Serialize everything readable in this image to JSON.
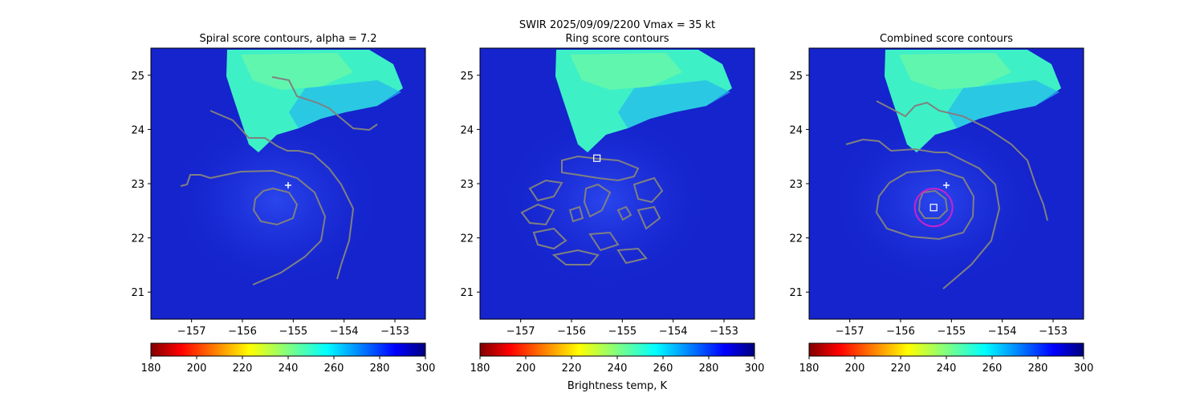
{
  "suptitle_line": "SWIR  2025/09/09/2200    Vmax = 35 kt",
  "colorbar": {
    "label": "Brightness temp, K",
    "ticks": [
      180,
      200,
      220,
      240,
      260,
      280,
      300
    ],
    "range": [
      180,
      300
    ],
    "colormap": "jet_r"
  },
  "colors": {
    "cold_cloud": "#3ef0c6",
    "warm_background": "#1c2fd8",
    "deep_background": "#0a0fb8",
    "contour": "#808080",
    "best_track_marker": "#ffffff",
    "center_ring": "#cc22cc"
  },
  "chart_data": [
    {
      "type": "heatmap",
      "title": "Spiral score contours, alpha =  7.2",
      "xlim": [
        -157.8,
        -152.4
      ],
      "ylim": [
        20.5,
        25.5
      ],
      "xticks": [
        -157,
        -156,
        -155,
        -154,
        -153
      ],
      "xtick_labels": [
        "−157",
        "−156",
        "−155",
        "−154",
        "−153"
      ],
      "yticks": [
        21,
        22,
        23,
        24,
        25
      ],
      "ytick_labels": [
        "21",
        "22",
        "23",
        "24",
        "25"
      ],
      "overlay": "spiral_contours",
      "markers": [
        {
          "kind": "plus",
          "x": -155.1,
          "y": 22.97
        }
      ]
    },
    {
      "type": "heatmap",
      "title": "Ring score contours",
      "xlim": [
        -157.8,
        -152.4
      ],
      "ylim": [
        20.5,
        25.5
      ],
      "xticks": [
        -157,
        -156,
        -155,
        -154,
        -153
      ],
      "xtick_labels": [
        "−157",
        "−156",
        "−155",
        "−154",
        "−153"
      ],
      "yticks": [
        21,
        22,
        23,
        24,
        25
      ],
      "ytick_labels": [
        "21",
        "22",
        "23",
        "24",
        "25"
      ],
      "overlay": "ring_contours",
      "markers": [
        {
          "kind": "square",
          "x": -155.5,
          "y": 23.47
        }
      ]
    },
    {
      "type": "heatmap",
      "title": "Combined score contours",
      "xlim": [
        -157.8,
        -152.4
      ],
      "ylim": [
        20.5,
        25.5
      ],
      "xticks": [
        -157,
        -156,
        -155,
        -154,
        -153
      ],
      "xtick_labels": [
        "−157",
        "−156",
        "−155",
        "−154",
        "−153"
      ],
      "yticks": [
        21,
        22,
        23,
        24,
        25
      ],
      "ytick_labels": [
        "21",
        "22",
        "23",
        "24",
        "25"
      ],
      "overlay": "combined_contours",
      "markers": [
        {
          "kind": "plus",
          "x": -155.1,
          "y": 22.97
        },
        {
          "kind": "square",
          "x": -155.35,
          "y": 22.56
        },
        {
          "kind": "circle",
          "x": -155.35,
          "y": 22.56,
          "r_deg": 0.37
        }
      ]
    }
  ]
}
